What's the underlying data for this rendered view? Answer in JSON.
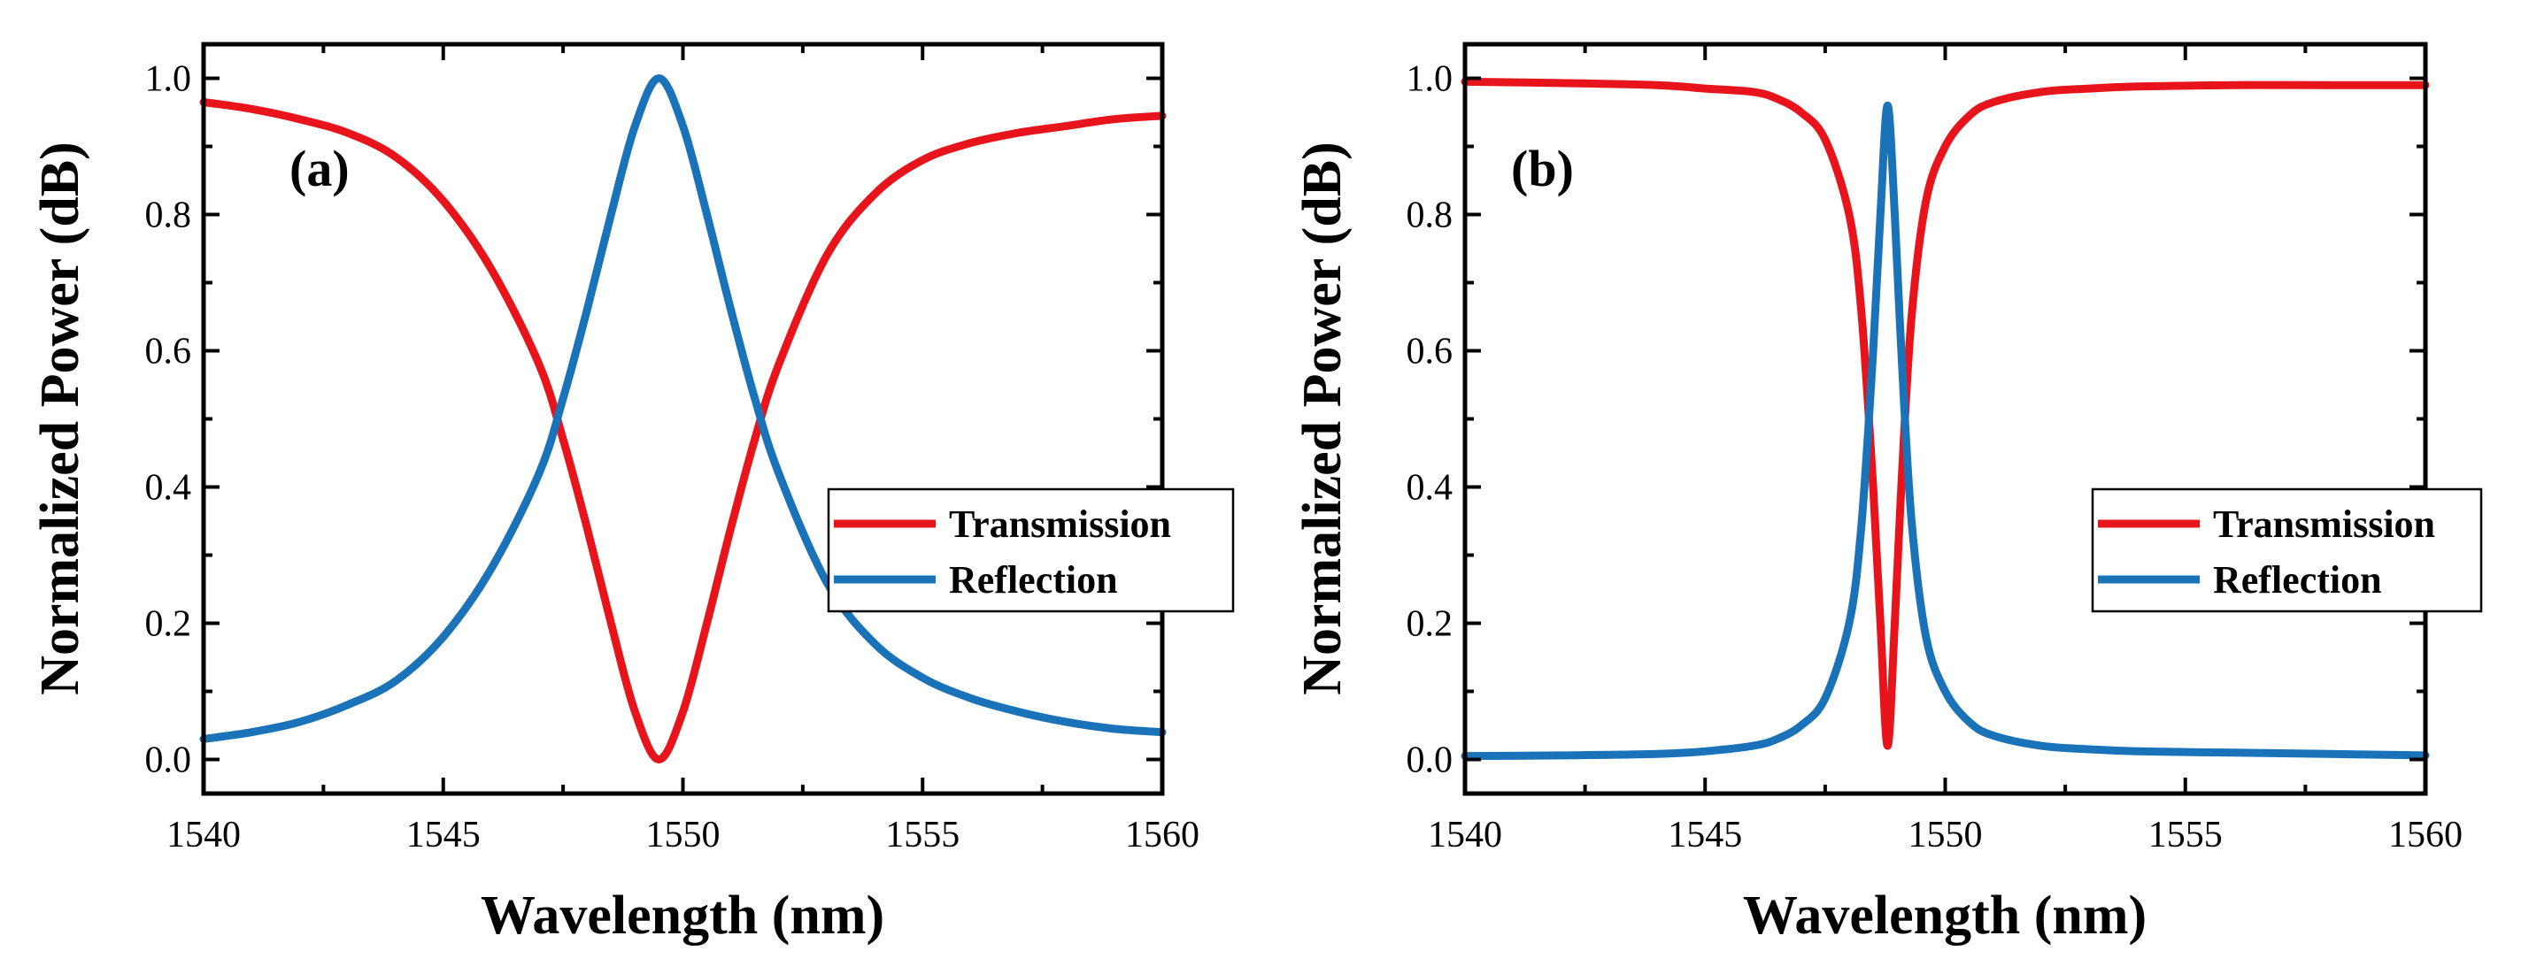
{
  "chart_data": [
    {
      "type": "line",
      "panel_label": "(a)",
      "xlabel": "Wavelength (nm)",
      "ylabel": "Normalized Power (dB)",
      "xlim": [
        1540,
        1560
      ],
      "ylim": [
        -0.05,
        1.05
      ],
      "xticks": [
        1540,
        1545,
        1550,
        1555,
        1560
      ],
      "xtick_labels": [
        "1540",
        "1545",
        "1550",
        "1555",
        "1560"
      ],
      "yticks": [
        0.0,
        0.2,
        0.4,
        0.6,
        0.8,
        1.0
      ],
      "ytick_labels": [
        "0.0",
        "0.2",
        "0.4",
        "0.6",
        "0.8",
        "1.0"
      ],
      "grid": false,
      "legend_position": "center-right",
      "series": [
        {
          "name": "Transmission",
          "color": "#e8141c",
          "x": [
            1540,
            1541,
            1542,
            1543,
            1544,
            1545,
            1546,
            1547,
            1547.5,
            1548,
            1548.5,
            1549,
            1549.5,
            1550,
            1550.5,
            1551,
            1551.5,
            1552,
            1553,
            1554,
            1555,
            1556,
            1557,
            1558,
            1559,
            1560
          ],
          "y": [
            0.965,
            0.955,
            0.94,
            0.92,
            0.885,
            0.82,
            0.72,
            0.58,
            0.47,
            0.34,
            0.2,
            0.07,
            0.0,
            0.07,
            0.2,
            0.34,
            0.47,
            0.58,
            0.74,
            0.83,
            0.88,
            0.905,
            0.92,
            0.93,
            0.94,
            0.945
          ]
        },
        {
          "name": "Reflection",
          "color": "#1a73b8",
          "x": [
            1540,
            1541,
            1542,
            1543,
            1544,
            1545,
            1546,
            1547,
            1547.5,
            1548,
            1548.5,
            1549,
            1549.5,
            1550,
            1550.5,
            1551,
            1551.5,
            1552,
            1553,
            1554,
            1555,
            1556,
            1557,
            1558,
            1559,
            1560
          ],
          "y": [
            0.03,
            0.04,
            0.055,
            0.08,
            0.115,
            0.18,
            0.28,
            0.42,
            0.53,
            0.66,
            0.8,
            0.93,
            1.0,
            0.93,
            0.8,
            0.66,
            0.53,
            0.42,
            0.26,
            0.17,
            0.12,
            0.09,
            0.07,
            0.055,
            0.045,
            0.04
          ]
        }
      ]
    },
    {
      "type": "line",
      "panel_label": "(b)",
      "xlabel": "Wavelength (nm)",
      "ylabel": "Normalized Power (dB)",
      "xlim": [
        1540,
        1560
      ],
      "ylim": [
        -0.05,
        1.05
      ],
      "xticks": [
        1540,
        1545,
        1550,
        1555,
        1560
      ],
      "xtick_labels": [
        "1540",
        "1545",
        "1550",
        "1555",
        "1560"
      ],
      "yticks": [
        0.0,
        0.2,
        0.4,
        0.6,
        0.8,
        1.0
      ],
      "ytick_labels": [
        "0.0",
        "0.2",
        "0.4",
        "0.6",
        "0.8",
        "1.0"
      ],
      "grid": false,
      "legend_position": "center-right",
      "series": [
        {
          "name": "Transmission",
          "color": "#e8141c",
          "x": [
            1540,
            1542,
            1544,
            1545,
            1546,
            1546.5,
            1547,
            1547.5,
            1548,
            1548.25,
            1548.5,
            1548.65,
            1548.8,
            1548.95,
            1549.1,
            1549.3,
            1549.6,
            1550,
            1550.5,
            1551,
            1552,
            1553,
            1554,
            1556,
            1558,
            1560
          ],
          "y": [
            0.995,
            0.993,
            0.99,
            0.985,
            0.98,
            0.97,
            0.95,
            0.91,
            0.8,
            0.66,
            0.4,
            0.2,
            0.02,
            0.2,
            0.42,
            0.65,
            0.82,
            0.9,
            0.945,
            0.965,
            0.98,
            0.985,
            0.988,
            0.99,
            0.99,
            0.99
          ]
        },
        {
          "name": "Reflection",
          "color": "#1a73b8",
          "x": [
            1540,
            1542,
            1544,
            1545,
            1546,
            1546.5,
            1547,
            1547.5,
            1548,
            1548.25,
            1548.5,
            1548.65,
            1548.8,
            1548.95,
            1549.1,
            1549.3,
            1549.6,
            1550,
            1550.5,
            1551,
            1552,
            1553,
            1554,
            1556,
            1558,
            1560
          ],
          "y": [
            0.005,
            0.006,
            0.008,
            0.012,
            0.02,
            0.03,
            0.05,
            0.09,
            0.2,
            0.34,
            0.6,
            0.8,
            0.96,
            0.8,
            0.58,
            0.35,
            0.18,
            0.1,
            0.055,
            0.035,
            0.02,
            0.015,
            0.012,
            0.01,
            0.008,
            0.006
          ]
        }
      ]
    }
  ]
}
